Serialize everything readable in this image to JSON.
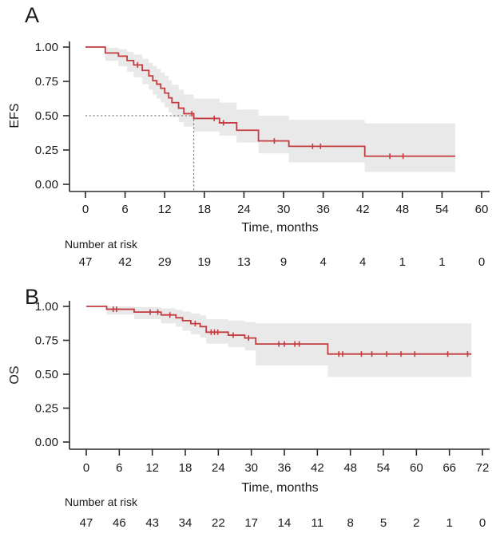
{
  "colors": {
    "curve": "#C43C40",
    "band": "#E9E9E9",
    "axis": "#2B2B2B",
    "text": "#1A1A1A",
    "median_line": "#7A7A7A",
    "background": "#FFFFFF"
  },
  "panels": [
    {
      "letter": "A"
    },
    {
      "letter": "B"
    }
  ],
  "chart_data": [
    {
      "type": "line",
      "subtype": "kaplan-meier-step",
      "panel": "A",
      "ylabel": "EFS",
      "xlabel": "Time, months",
      "xlim": [
        0,
        60
      ],
      "ylim": [
        0.0,
        1.0
      ],
      "x_ticks": [
        0,
        6,
        12,
        18,
        24,
        30,
        36,
        42,
        48,
        54,
        60
      ],
      "y_tick_values": [
        1.0,
        0.75,
        0.5,
        0.25,
        0.0
      ],
      "y_tick_labels": [
        "1.00",
        "0.75",
        "0.50",
        "0.25",
        "0.00"
      ],
      "grid": false,
      "legend": "none",
      "series": [
        {
          "name": "EFS",
          "start": [
            0,
            1.0
          ],
          "steps": [
            [
              3.0,
              0.957
            ],
            [
              5.0,
              0.934
            ],
            [
              6.3,
              0.902
            ],
            [
              7.3,
              0.87
            ],
            [
              8.6,
              0.83
            ],
            [
              9.6,
              0.79
            ],
            [
              10.2,
              0.755
            ],
            [
              10.8,
              0.73
            ],
            [
              11.4,
              0.7
            ],
            [
              12.0,
              0.665
            ],
            [
              12.6,
              0.63
            ],
            [
              13.1,
              0.595
            ],
            [
              14.1,
              0.555
            ],
            [
              14.9,
              0.515
            ],
            [
              16.4,
              0.48
            ],
            [
              20.3,
              0.448
            ],
            [
              22.9,
              0.394
            ],
            [
              26.2,
              0.316
            ],
            [
              30.8,
              0.277
            ],
            [
              42.3,
              0.205
            ]
          ],
          "end_time": 56
        }
      ],
      "ci_band": {
        "segments": [
          [
            3.0,
            0.9,
            0.995
          ],
          [
            5.0,
            0.86,
            0.985
          ],
          [
            6.3,
            0.82,
            0.965
          ],
          [
            7.3,
            0.78,
            0.945
          ],
          [
            8.6,
            0.73,
            0.915
          ],
          [
            9.6,
            0.69,
            0.885
          ],
          [
            10.2,
            0.655,
            0.862
          ],
          [
            10.8,
            0.625,
            0.84
          ],
          [
            11.4,
            0.595,
            0.815
          ],
          [
            12.0,
            0.56,
            0.79
          ],
          [
            12.6,
            0.525,
            0.758
          ],
          [
            13.1,
            0.49,
            0.725
          ],
          [
            14.1,
            0.452,
            0.69
          ],
          [
            14.9,
            0.42,
            0.655
          ],
          [
            16.4,
            0.385,
            0.625
          ],
          [
            20.3,
            0.355,
            0.595
          ],
          [
            22.9,
            0.305,
            0.545
          ],
          [
            26.2,
            0.225,
            0.5
          ],
          [
            30.8,
            0.16,
            0.47
          ],
          [
            42.3,
            0.09,
            0.445
          ]
        ],
        "end_time": 56
      },
      "censor_marks": [
        [
          7.9,
          0.87
        ],
        [
          16.1,
          0.515
        ],
        [
          19.5,
          0.48
        ],
        [
          20.9,
          0.448
        ],
        [
          28.6,
          0.316
        ],
        [
          34.4,
          0.277
        ],
        [
          35.6,
          0.277
        ],
        [
          46.1,
          0.205
        ],
        [
          48.1,
          0.205
        ]
      ],
      "median_line": {
        "time": 16.4,
        "surv": 0.5
      },
      "number_at_risk": {
        "label": "Number at risk",
        "times": [
          0,
          6,
          12,
          18,
          24,
          30,
          36,
          42,
          48,
          54,
          60
        ],
        "counts": [
          "47",
          "42",
          "29",
          "19",
          "13",
          "9",
          "4",
          "4",
          "1",
          "1",
          "0"
        ]
      }
    },
    {
      "type": "line",
      "subtype": "kaplan-meier-step",
      "panel": "B",
      "ylabel": "OS",
      "xlabel": "Time, months",
      "xlim": [
        0,
        72
      ],
      "ylim": [
        0.0,
        1.0
      ],
      "x_ticks": [
        0,
        6,
        12,
        18,
        24,
        30,
        36,
        42,
        48,
        54,
        60,
        66,
        72
      ],
      "y_tick_values": [
        1.0,
        0.75,
        0.5,
        0.25,
        0.0
      ],
      "y_tick_labels": [
        "1.00",
        "0.75",
        "0.50",
        "0.25",
        "0.00"
      ],
      "grid": false,
      "legend": "none",
      "series": [
        {
          "name": "OS",
          "start": [
            0,
            1.0
          ],
          "steps": [
            [
              3.7,
              0.979
            ],
            [
              8.7,
              0.958
            ],
            [
              13.6,
              0.937
            ],
            [
              16.3,
              0.916
            ],
            [
              17.5,
              0.895
            ],
            [
              19.0,
              0.873
            ],
            [
              20.7,
              0.851
            ],
            [
              21.8,
              0.81
            ],
            [
              25.8,
              0.788
            ],
            [
              28.8,
              0.767
            ],
            [
              30.8,
              0.723
            ],
            [
              43.9,
              0.649
            ]
          ],
          "end_time": 70
        }
      ],
      "ci_band": {
        "segments": [
          [
            3.7,
            0.94,
            1.0
          ],
          [
            8.7,
            0.905,
            0.995
          ],
          [
            13.6,
            0.875,
            0.985
          ],
          [
            16.3,
            0.85,
            0.975
          ],
          [
            17.5,
            0.82,
            0.962
          ],
          [
            19.0,
            0.795,
            0.948
          ],
          [
            20.7,
            0.77,
            0.933
          ],
          [
            21.8,
            0.725,
            0.905
          ],
          [
            25.8,
            0.7,
            0.895
          ],
          [
            28.8,
            0.675,
            0.885
          ],
          [
            30.8,
            0.565,
            0.875
          ],
          [
            43.9,
            0.48,
            0.875
          ]
        ],
        "end_time": 70
      },
      "censor_marks": [
        [
          4.9,
          0.979
        ],
        [
          5.5,
          0.979
        ],
        [
          11.6,
          0.958
        ],
        [
          13.0,
          0.958
        ],
        [
          15.2,
          0.937
        ],
        [
          19.8,
          0.873
        ],
        [
          22.7,
          0.81
        ],
        [
          23.3,
          0.81
        ],
        [
          23.9,
          0.81
        ],
        [
          26.7,
          0.788
        ],
        [
          29.5,
          0.767
        ],
        [
          35.0,
          0.723
        ],
        [
          36.0,
          0.723
        ],
        [
          37.9,
          0.723
        ],
        [
          38.7,
          0.723
        ],
        [
          45.9,
          0.649
        ],
        [
          46.6,
          0.649
        ],
        [
          50.0,
          0.649
        ],
        [
          51.9,
          0.649
        ],
        [
          54.6,
          0.649
        ],
        [
          57.2,
          0.649
        ],
        [
          59.7,
          0.649
        ],
        [
          65.7,
          0.649
        ],
        [
          69.3,
          0.649
        ]
      ],
      "median_line": null,
      "number_at_risk": {
        "label": "Number at risk",
        "times": [
          0,
          6,
          12,
          18,
          24,
          30,
          36,
          42,
          48,
          54,
          60,
          66,
          72
        ],
        "counts": [
          "47",
          "46",
          "43",
          "34",
          "22",
          "17",
          "14",
          "11",
          "8",
          "5",
          "2",
          "1",
          "0"
        ]
      }
    }
  ]
}
